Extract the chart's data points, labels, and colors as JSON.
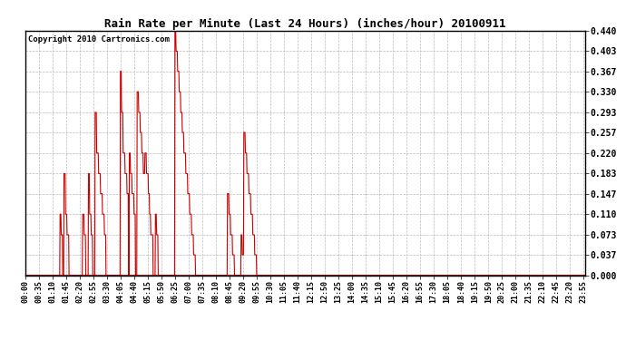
{
  "title": "Rain Rate per Minute (Last 24 Hours) (inches/hour) 20100911",
  "copyright": "Copyright 2010 Cartronics.com",
  "line_color": "#cc0000",
  "bg_color": "#ffffff",
  "grid_color": "#aaaaaa",
  "yticks": [
    0.0,
    0.037,
    0.073,
    0.11,
    0.147,
    0.183,
    0.22,
    0.257,
    0.293,
    0.33,
    0.367,
    0.403,
    0.44
  ],
  "ylim": [
    0.0,
    0.44
  ],
  "total_minutes": 1440,
  "tick_interval": 35
}
